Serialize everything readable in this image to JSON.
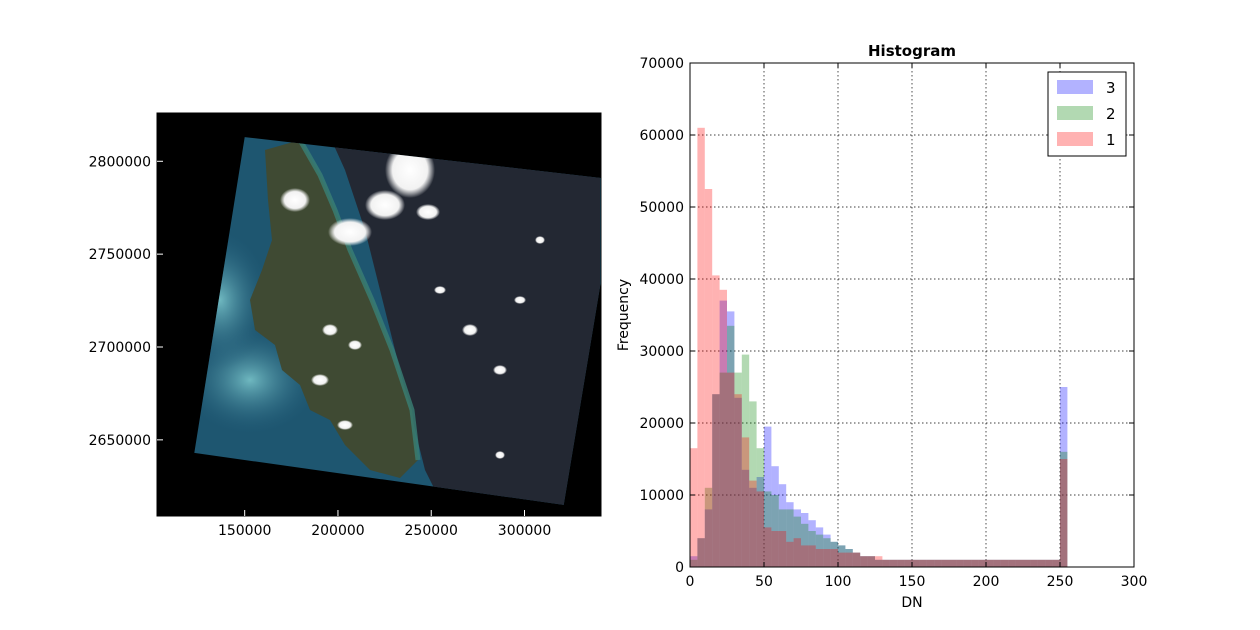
{
  "chart_data": [
    {
      "type": "image",
      "title": "",
      "xlabel": "",
      "ylabel": "",
      "xlim": [
        103000,
        341000
      ],
      "ylim": [
        2609000,
        2826000
      ],
      "x_ticks": [
        150000,
        200000,
        250000,
        300000
      ],
      "y_ticks": [
        2650000,
        2700000,
        2750000,
        2800000
      ],
      "x_tick_labels": [
        "150000",
        "200000",
        "250000",
        "300000"
      ],
      "y_tick_labels": [
        "2650000",
        "2700000",
        "2750000",
        "2800000"
      ],
      "background_color": "#000000",
      "scene_corners": [
        [
          150000,
          2813000
        ],
        [
          350000,
          2790000
        ],
        [
          321000,
          2615000
        ],
        [
          123000,
          2643000
        ]
      ],
      "grid": false
    },
    {
      "type": "histogram",
      "title": "Histogram",
      "xlabel": "DN",
      "ylabel": "Frequency",
      "xlim": [
        0,
        300
      ],
      "ylim": [
        0,
        70000
      ],
      "x_ticks": [
        0,
        50,
        100,
        150,
        200,
        250,
        300
      ],
      "y_ticks": [
        0,
        10000,
        20000,
        30000,
        40000,
        50000,
        60000,
        70000
      ],
      "x_tick_labels": [
        "0",
        "50",
        "100",
        "150",
        "200",
        "250",
        "300"
      ],
      "y_tick_labels": [
        "0",
        "10000",
        "20000",
        "30000",
        "40000",
        "50000",
        "60000",
        "70000"
      ],
      "bin_width": 5,
      "bin_start": 0,
      "grid": true,
      "legend_position": "top-right",
      "series": [
        {
          "name": "3",
          "color": "#0000ff",
          "opacity": 0.3,
          "values": [
            1500,
            4000,
            8000,
            24000,
            37000,
            35500,
            23500,
            13500,
            11000,
            12500,
            19500,
            14000,
            11500,
            9000,
            8000,
            7500,
            6500,
            5500,
            4500,
            3500,
            3000,
            2500,
            2000,
            1500,
            1500,
            1000,
            1000,
            1000,
            1000,
            1000,
            1000,
            1000,
            1000,
            1000,
            1000,
            1000,
            1000,
            1000,
            1000,
            1000,
            1000,
            1000,
            1000,
            1000,
            1000,
            1000,
            1000,
            1000,
            1000,
            1000,
            25000
          ]
        },
        {
          "name": "2",
          "color": "#008000",
          "opacity": 0.3,
          "values": [
            1000,
            4000,
            11000,
            24000,
            27000,
            33500,
            27000,
            29500,
            23000,
            16500,
            10500,
            10000,
            8000,
            8000,
            7000,
            6000,
            5000,
            4500,
            4000,
            3500,
            3000,
            2500,
            2000,
            1500,
            1500,
            1000,
            1000,
            1000,
            1000,
            1000,
            1000,
            1000,
            1000,
            1000,
            1000,
            1000,
            1000,
            1000,
            1000,
            1000,
            1000,
            1000,
            1000,
            1000,
            1000,
            1000,
            1000,
            1000,
            1000,
            1000,
            16000
          ]
        },
        {
          "name": "1",
          "color": "#ff0000",
          "opacity": 0.3,
          "values": [
            16500,
            61000,
            52500,
            40500,
            38500,
            27000,
            24000,
            18000,
            12000,
            10500,
            5500,
            5000,
            5000,
            3500,
            4000,
            3000,
            3000,
            2500,
            2500,
            2500,
            2000,
            2000,
            2000,
            1500,
            1500,
            1500,
            1000,
            1000,
            1000,
            1000,
            1000,
            1000,
            1000,
            1000,
            1000,
            1000,
            1000,
            1000,
            1000,
            1000,
            1000,
            1000,
            1000,
            1000,
            1000,
            1000,
            1000,
            1000,
            1000,
            1000,
            15000
          ]
        }
      ]
    }
  ]
}
